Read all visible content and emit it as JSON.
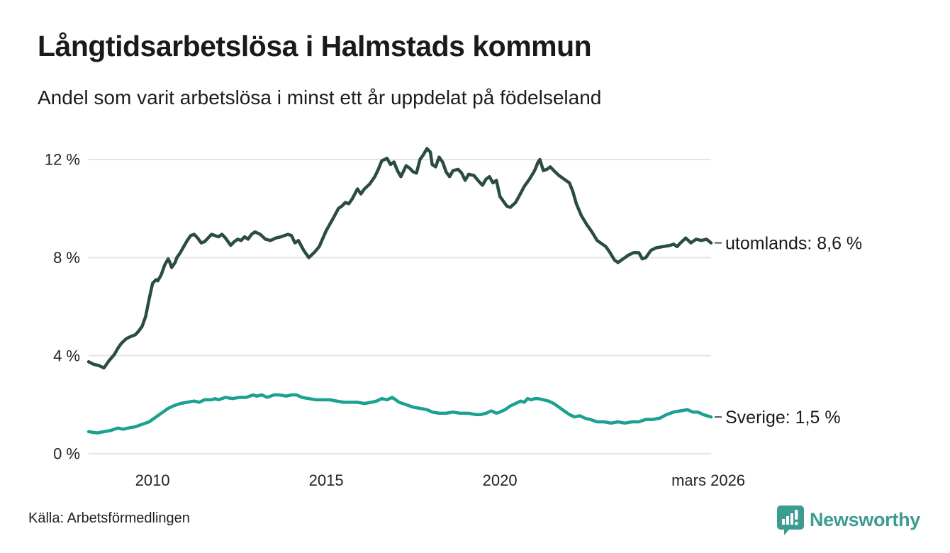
{
  "header": {
    "title": "Långtidsarbetslösa i Halmstads kommun",
    "subtitle": "Andel som varit arbetslösa i minst ett år uppdelat på födelseland"
  },
  "footer": {
    "source": "Källa: Arbetsförmedlingen",
    "brand": "Newsworthy"
  },
  "colors": {
    "utomlands_line": "#2a4c44",
    "sverige_line": "#1ba18f",
    "gridline": "#e4e4e4",
    "tick_text": "#222222",
    "label_text": "#1a1a1a",
    "label_dash": "#555555",
    "brand_teal": "#3d9c92"
  },
  "chart_data": {
    "type": "line",
    "title": "Långtidsarbetslösa i Halmstads kommun",
    "subtitle": "Andel som varit arbetslösa i minst ett år uppdelat på födelseland",
    "grid": "horizontal-only",
    "legend_position": "right-of-line-ends",
    "x_range": [
      2008.16,
      2026.08
    ],
    "ylim": [
      0,
      13
    ],
    "y_axis": {
      "ticks": [
        {
          "label": "0 %",
          "value": 0
        },
        {
          "label": "4 %",
          "value": 4
        },
        {
          "label": "8 %",
          "value": 8
        },
        {
          "label": "12 %",
          "value": 12
        }
      ]
    },
    "x_axis": {
      "ticks": [
        {
          "label": "2010",
          "year": 2010
        },
        {
          "label": "2015",
          "year": 2015
        },
        {
          "label": "2020",
          "year": 2020
        },
        {
          "label": "mars 2026",
          "year": 2026.0
        }
      ]
    },
    "series": [
      {
        "name": "utomlands",
        "end_label": "utomlands: 8,6 %",
        "end_value_pct": 8.6,
        "color": "#2a4c44",
        "points": [
          [
            2008.16,
            3.75
          ],
          [
            2008.3,
            3.65
          ],
          [
            2008.45,
            3.6
          ],
          [
            2008.6,
            3.5
          ],
          [
            2008.75,
            3.8
          ],
          [
            2008.9,
            4.05
          ],
          [
            2009.0,
            4.3
          ],
          [
            2009.1,
            4.5
          ],
          [
            2009.25,
            4.7
          ],
          [
            2009.4,
            4.8
          ],
          [
            2009.5,
            4.85
          ],
          [
            2009.6,
            5.0
          ],
          [
            2009.7,
            5.2
          ],
          [
            2009.8,
            5.6
          ],
          [
            2009.9,
            6.3
          ],
          [
            2010.0,
            6.95
          ],
          [
            2010.1,
            7.1
          ],
          [
            2010.15,
            7.05
          ],
          [
            2010.25,
            7.3
          ],
          [
            2010.35,
            7.7
          ],
          [
            2010.45,
            7.95
          ],
          [
            2010.5,
            7.8
          ],
          [
            2010.55,
            7.6
          ],
          [
            2010.65,
            7.8
          ],
          [
            2010.7,
            8.0
          ],
          [
            2010.8,
            8.2
          ],
          [
            2010.9,
            8.45
          ],
          [
            2011.0,
            8.7
          ],
          [
            2011.1,
            8.9
          ],
          [
            2011.2,
            8.95
          ],
          [
            2011.3,
            8.8
          ],
          [
            2011.4,
            8.6
          ],
          [
            2011.5,
            8.65
          ],
          [
            2011.6,
            8.8
          ],
          [
            2011.7,
            8.95
          ],
          [
            2011.8,
            8.9
          ],
          [
            2011.9,
            8.85
          ],
          [
            2012.0,
            8.95
          ],
          [
            2012.1,
            8.8
          ],
          [
            2012.25,
            8.5
          ],
          [
            2012.35,
            8.65
          ],
          [
            2012.45,
            8.75
          ],
          [
            2012.55,
            8.7
          ],
          [
            2012.65,
            8.85
          ],
          [
            2012.75,
            8.75
          ],
          [
            2012.85,
            8.95
          ],
          [
            2012.95,
            9.05
          ],
          [
            2013.1,
            8.95
          ],
          [
            2013.25,
            8.75
          ],
          [
            2013.4,
            8.7
          ],
          [
            2013.55,
            8.8
          ],
          [
            2013.7,
            8.85
          ],
          [
            2013.9,
            8.95
          ],
          [
            2014.0,
            8.9
          ],
          [
            2014.1,
            8.6
          ],
          [
            2014.2,
            8.7
          ],
          [
            2014.35,
            8.3
          ],
          [
            2014.5,
            8.0
          ],
          [
            2014.65,
            8.2
          ],
          [
            2014.8,
            8.45
          ],
          [
            2015.0,
            9.1
          ],
          [
            2015.2,
            9.6
          ],
          [
            2015.35,
            10.0
          ],
          [
            2015.45,
            10.1
          ],
          [
            2015.55,
            10.25
          ],
          [
            2015.65,
            10.2
          ],
          [
            2015.75,
            10.4
          ],
          [
            2015.9,
            10.8
          ],
          [
            2016.0,
            10.6
          ],
          [
            2016.1,
            10.8
          ],
          [
            2016.25,
            11.0
          ],
          [
            2016.4,
            11.3
          ],
          [
            2016.5,
            11.6
          ],
          [
            2016.6,
            11.95
          ],
          [
            2016.75,
            12.05
          ],
          [
            2016.85,
            11.8
          ],
          [
            2016.95,
            11.9
          ],
          [
            2017.05,
            11.55
          ],
          [
            2017.15,
            11.3
          ],
          [
            2017.3,
            11.75
          ],
          [
            2017.4,
            11.65
          ],
          [
            2017.5,
            11.5
          ],
          [
            2017.6,
            11.45
          ],
          [
            2017.7,
            12.0
          ],
          [
            2017.8,
            12.2
          ],
          [
            2017.9,
            12.45
          ],
          [
            2018.0,
            12.3
          ],
          [
            2018.05,
            11.8
          ],
          [
            2018.15,
            11.7
          ],
          [
            2018.25,
            12.1
          ],
          [
            2018.35,
            11.9
          ],
          [
            2018.45,
            11.5
          ],
          [
            2018.55,
            11.3
          ],
          [
            2018.65,
            11.55
          ],
          [
            2018.8,
            11.6
          ],
          [
            2018.9,
            11.45
          ],
          [
            2019.0,
            11.15
          ],
          [
            2019.1,
            11.4
          ],
          [
            2019.25,
            11.35
          ],
          [
            2019.4,
            11.1
          ],
          [
            2019.5,
            10.95
          ],
          [
            2019.6,
            11.2
          ],
          [
            2019.7,
            11.3
          ],
          [
            2019.8,
            11.05
          ],
          [
            2019.9,
            11.15
          ],
          [
            2020.0,
            10.5
          ],
          [
            2020.1,
            10.3
          ],
          [
            2020.2,
            10.1
          ],
          [
            2020.3,
            10.05
          ],
          [
            2020.45,
            10.25
          ],
          [
            2020.55,
            10.5
          ],
          [
            2020.7,
            10.9
          ],
          [
            2020.85,
            11.2
          ],
          [
            2021.0,
            11.55
          ],
          [
            2021.1,
            11.9
          ],
          [
            2021.15,
            12.0
          ],
          [
            2021.25,
            11.55
          ],
          [
            2021.35,
            11.6
          ],
          [
            2021.45,
            11.7
          ],
          [
            2021.55,
            11.55
          ],
          [
            2021.7,
            11.35
          ],
          [
            2021.85,
            11.2
          ],
          [
            2022.0,
            11.05
          ],
          [
            2022.1,
            10.7
          ],
          [
            2022.2,
            10.2
          ],
          [
            2022.35,
            9.7
          ],
          [
            2022.5,
            9.35
          ],
          [
            2022.65,
            9.05
          ],
          [
            2022.8,
            8.7
          ],
          [
            2022.95,
            8.55
          ],
          [
            2023.05,
            8.45
          ],
          [
            2023.15,
            8.25
          ],
          [
            2023.3,
            7.9
          ],
          [
            2023.4,
            7.8
          ],
          [
            2023.55,
            7.95
          ],
          [
            2023.7,
            8.1
          ],
          [
            2023.85,
            8.2
          ],
          [
            2024.0,
            8.2
          ],
          [
            2024.1,
            7.95
          ],
          [
            2024.2,
            8.0
          ],
          [
            2024.35,
            8.3
          ],
          [
            2024.5,
            8.4
          ],
          [
            2024.7,
            8.45
          ],
          [
            2024.9,
            8.5
          ],
          [
            2025.0,
            8.55
          ],
          [
            2025.1,
            8.45
          ],
          [
            2025.2,
            8.6
          ],
          [
            2025.35,
            8.8
          ],
          [
            2025.5,
            8.6
          ],
          [
            2025.65,
            8.75
          ],
          [
            2025.8,
            8.7
          ],
          [
            2025.95,
            8.75
          ],
          [
            2026.08,
            8.6
          ]
        ]
      },
      {
        "name": "Sverige",
        "end_label": "Sverige: 1,5 %",
        "end_value_pct": 1.5,
        "color": "#1ba18f",
        "points": [
          [
            2008.16,
            0.9
          ],
          [
            2008.4,
            0.85
          ],
          [
            2008.6,
            0.9
          ],
          [
            2008.8,
            0.95
          ],
          [
            2009.0,
            1.05
          ],
          [
            2009.15,
            1.0
          ],
          [
            2009.3,
            1.05
          ],
          [
            2009.5,
            1.1
          ],
          [
            2009.7,
            1.2
          ],
          [
            2009.9,
            1.3
          ],
          [
            2010.0,
            1.4
          ],
          [
            2010.15,
            1.55
          ],
          [
            2010.3,
            1.7
          ],
          [
            2010.45,
            1.85
          ],
          [
            2010.6,
            1.95
          ],
          [
            2010.8,
            2.05
          ],
          [
            2011.0,
            2.1
          ],
          [
            2011.2,
            2.15
          ],
          [
            2011.35,
            2.1
          ],
          [
            2011.5,
            2.2
          ],
          [
            2011.7,
            2.2
          ],
          [
            2011.8,
            2.25
          ],
          [
            2011.9,
            2.2
          ],
          [
            2012.1,
            2.3
          ],
          [
            2012.3,
            2.25
          ],
          [
            2012.5,
            2.3
          ],
          [
            2012.7,
            2.3
          ],
          [
            2012.9,
            2.4
          ],
          [
            2013.0,
            2.35
          ],
          [
            2013.15,
            2.4
          ],
          [
            2013.3,
            2.3
          ],
          [
            2013.5,
            2.4
          ],
          [
            2013.65,
            2.4
          ],
          [
            2013.85,
            2.35
          ],
          [
            2014.0,
            2.4
          ],
          [
            2014.15,
            2.4
          ],
          [
            2014.3,
            2.3
          ],
          [
            2014.5,
            2.25
          ],
          [
            2014.7,
            2.2
          ],
          [
            2014.9,
            2.2
          ],
          [
            2015.1,
            2.2
          ],
          [
            2015.3,
            2.15
          ],
          [
            2015.5,
            2.1
          ],
          [
            2015.7,
            2.1
          ],
          [
            2015.9,
            2.1
          ],
          [
            2016.1,
            2.05
          ],
          [
            2016.3,
            2.1
          ],
          [
            2016.45,
            2.15
          ],
          [
            2016.6,
            2.25
          ],
          [
            2016.75,
            2.2
          ],
          [
            2016.9,
            2.3
          ],
          [
            2017.0,
            2.2
          ],
          [
            2017.1,
            2.1
          ],
          [
            2017.3,
            2.0
          ],
          [
            2017.5,
            1.9
          ],
          [
            2017.7,
            1.85
          ],
          [
            2017.9,
            1.8
          ],
          [
            2018.05,
            1.7
          ],
          [
            2018.25,
            1.65
          ],
          [
            2018.45,
            1.65
          ],
          [
            2018.65,
            1.7
          ],
          [
            2018.85,
            1.65
          ],
          [
            2019.1,
            1.65
          ],
          [
            2019.3,
            1.6
          ],
          [
            2019.45,
            1.6
          ],
          [
            2019.6,
            1.65
          ],
          [
            2019.75,
            1.75
          ],
          [
            2019.9,
            1.65
          ],
          [
            2020.0,
            1.7
          ],
          [
            2020.15,
            1.8
          ],
          [
            2020.3,
            1.95
          ],
          [
            2020.45,
            2.05
          ],
          [
            2020.6,
            2.15
          ],
          [
            2020.7,
            2.1
          ],
          [
            2020.8,
            2.25
          ],
          [
            2020.9,
            2.2
          ],
          [
            2021.0,
            2.25
          ],
          [
            2021.1,
            2.25
          ],
          [
            2021.25,
            2.2
          ],
          [
            2021.4,
            2.15
          ],
          [
            2021.55,
            2.05
          ],
          [
            2021.7,
            1.9
          ],
          [
            2021.85,
            1.75
          ],
          [
            2022.0,
            1.6
          ],
          [
            2022.15,
            1.5
          ],
          [
            2022.3,
            1.55
          ],
          [
            2022.45,
            1.45
          ],
          [
            2022.6,
            1.4
          ],
          [
            2022.8,
            1.3
          ],
          [
            2023.0,
            1.3
          ],
          [
            2023.2,
            1.25
          ],
          [
            2023.4,
            1.3
          ],
          [
            2023.6,
            1.25
          ],
          [
            2023.8,
            1.3
          ],
          [
            2024.0,
            1.3
          ],
          [
            2024.2,
            1.4
          ],
          [
            2024.4,
            1.4
          ],
          [
            2024.6,
            1.45
          ],
          [
            2024.8,
            1.6
          ],
          [
            2025.0,
            1.7
          ],
          [
            2025.2,
            1.75
          ],
          [
            2025.4,
            1.8
          ],
          [
            2025.55,
            1.7
          ],
          [
            2025.7,
            1.7
          ],
          [
            2025.85,
            1.6
          ],
          [
            2026.08,
            1.5
          ]
        ]
      }
    ]
  }
}
